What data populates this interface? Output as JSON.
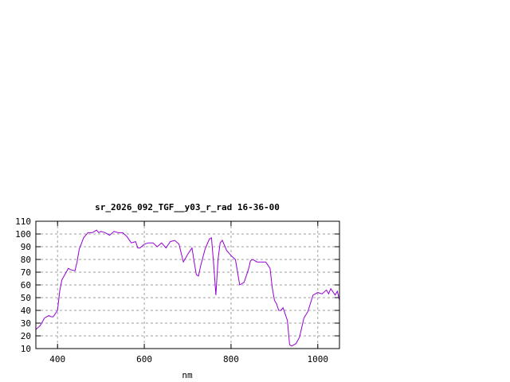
{
  "chart_data": {
    "type": "line",
    "title": "sr_2026_092_TGF__y03_r_rad 16-36-00",
    "xlabel": "nm",
    "ylabel": "",
    "xlim": [
      350,
      1050
    ],
    "ylim": [
      10,
      110
    ],
    "xticks": [
      400,
      600,
      800,
      1000
    ],
    "yticks": [
      10,
      20,
      30,
      40,
      50,
      60,
      70,
      80,
      90,
      100,
      110
    ],
    "grid": true,
    "line_color": "#9400d3",
    "series": [
      {
        "x": [
          350,
          360,
          370,
          380,
          385,
          390,
          400,
          405,
          410,
          420,
          425,
          430,
          440,
          445,
          450,
          460,
          470,
          480,
          490,
          495,
          500,
          510,
          520,
          530,
          540,
          550,
          560,
          570,
          580,
          585,
          590,
          600,
          610,
          620,
          630,
          640,
          650,
          660,
          670,
          680,
          690,
          700,
          710,
          715,
          720,
          725,
          730,
          740,
          750,
          755,
          760,
          765,
          770,
          775,
          780,
          790,
          800,
          810,
          815,
          820,
          830,
          840,
          845,
          850,
          860,
          870,
          880,
          890,
          895,
          900,
          905,
          910,
          915,
          920,
          925,
          930,
          935,
          940,
          950,
          958,
          968,
          977,
          989,
          1000,
          1010,
          1020,
          1025,
          1030,
          1040,
          1045,
          1050
        ],
        "y": [
          25,
          28,
          34,
          36,
          35,
          35,
          40,
          55,
          64,
          70,
          73,
          72,
          71,
          78,
          88,
          97,
          101,
          101,
          103,
          101,
          102,
          101,
          99,
          102,
          101,
          101,
          98,
          93,
          94,
          89,
          89,
          92,
          93,
          93,
          90,
          93,
          89,
          94,
          95,
          92,
          78,
          84,
          89,
          78,
          68,
          67,
          75,
          88,
          96,
          97,
          76,
          52,
          80,
          93,
          95,
          87,
          83,
          80,
          70,
          60,
          62,
          72,
          79,
          80,
          78,
          78,
          78,
          73,
          58,
          48,
          45,
          40,
          40,
          42,
          37,
          32,
          13,
          12,
          14,
          19,
          34,
          39,
          52,
          54,
          53,
          56,
          53,
          57,
          52,
          55,
          48
        ]
      }
    ]
  }
}
